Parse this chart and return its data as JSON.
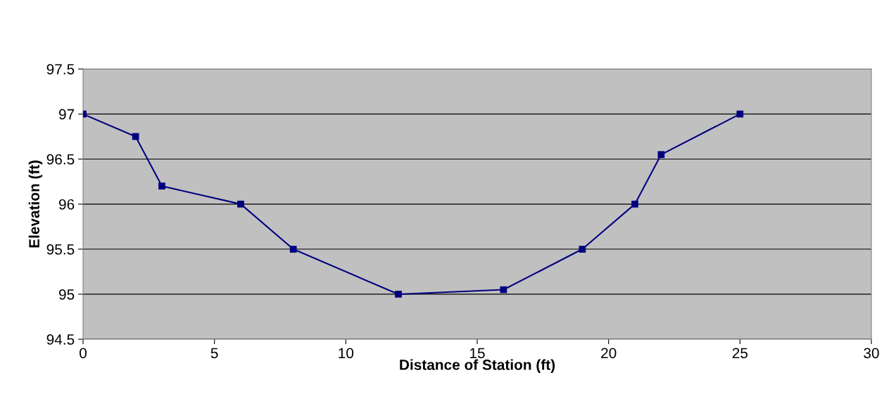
{
  "chart_data": {
    "type": "line",
    "xlabel": "Distance of Station (ft)",
    "ylabel": "Elevation (ft)",
    "x": [
      0,
      2,
      3,
      6,
      8,
      12,
      16,
      19,
      21,
      22,
      25
    ],
    "series": [
      {
        "color": "#000080",
        "values": [
          97,
          96.75,
          96.2,
          96,
          95.5,
          95,
          95.05,
          95.5,
          96,
          96.55,
          97
        ]
      }
    ],
    "xlim": [
      0,
      30
    ],
    "xticks": [
      0,
      5,
      10,
      15,
      20,
      25,
      30
    ],
    "ylim": [
      94.5,
      97.5
    ],
    "yticks": [
      94.5,
      95,
      95.5,
      96,
      96.5,
      97,
      97.5
    ],
    "grid": "y",
    "marker": "square",
    "line_style": "solid"
  }
}
